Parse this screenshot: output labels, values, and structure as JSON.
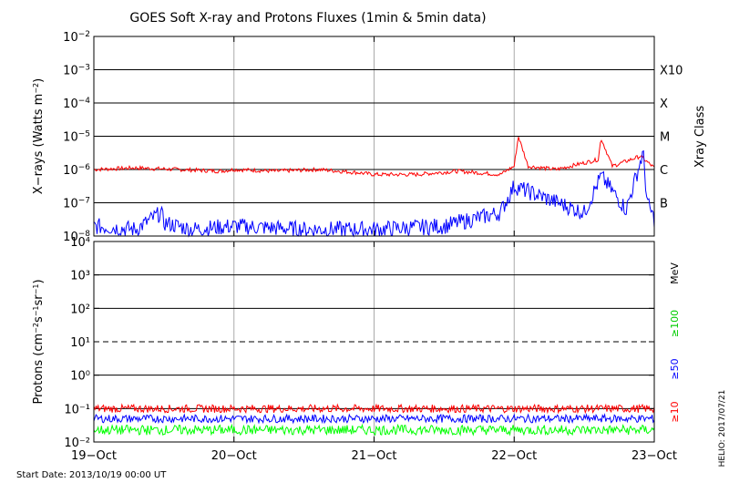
{
  "chart_data": [
    {
      "type": "line",
      "panel": "xray",
      "title": "GOES Soft X-ray and Protons Fluxes   (1min & 5min data)",
      "ylabel_html": "X−rays (Watts m<tspan baseline-shift='super' font-size='8'>−2</tspan>)",
      "ylabel_text": "X-rays (Watts m-2)",
      "y_scale": "log",
      "ylim_exp": [
        -8,
        -2
      ],
      "y_tick_exps": [
        -8,
        -7,
        -6,
        -5,
        -4,
        -3,
        -2
      ],
      "right_axis_label": "Xray Class",
      "right_ticks": [
        {
          "label": "X10",
          "exp": -3
        },
        {
          "label": "X",
          "exp": -4
        },
        {
          "label": "M",
          "exp": -5
        },
        {
          "label": "C",
          "exp": -6
        },
        {
          "label": "B",
          "exp": -7
        }
      ],
      "grid": true,
      "series": [
        {
          "color": "#ff0000",
          "baseline_exp": -6.0,
          "x_days": [
            0,
            0.3,
            0.6,
            0.9,
            1.0,
            1.3,
            1.6,
            1.9,
            2.0,
            2.3,
            2.6,
            2.9,
            3.0,
            3.03,
            3.1,
            3.3,
            3.6,
            3.62,
            3.7,
            3.9,
            4.0
          ],
          "y_exp": [
            -6.0,
            -5.95,
            -6.0,
            -6.05,
            -6.0,
            -6.05,
            -6.0,
            -6.1,
            -6.15,
            -6.15,
            -6.05,
            -6.15,
            -5.9,
            -5.0,
            -5.9,
            -6.0,
            -5.7,
            -5.05,
            -5.9,
            -5.6,
            -5.95
          ]
        },
        {
          "color": "#0000ff",
          "baseline_exp": -7.9,
          "x_days": [
            0,
            0.3,
            0.48,
            0.5,
            0.7,
            1.0,
            1.5,
            2.0,
            2.5,
            2.9,
            3.0,
            3.5,
            3.62,
            3.8,
            3.92,
            3.95,
            4.0
          ],
          "y_exp": [
            -7.7,
            -7.8,
            -7.3,
            -7.6,
            -7.8,
            -7.7,
            -7.8,
            -7.8,
            -7.7,
            -7.3,
            -6.5,
            -7.3,
            -6.2,
            -7.2,
            -5.5,
            -7.0,
            -7.5
          ]
        }
      ]
    },
    {
      "type": "line",
      "panel": "protons",
      "ylabel_html": "Protons (cm<tspan baseline-shift='super' font-size='8'>−2</tspan>s<tspan baseline-shift='super' font-size='8'>−1</tspan>sr<tspan baseline-shift='super' font-size='8'>−1</tspan>)",
      "ylabel_text": "Protons (cm-2s-1sr-1)",
      "y_scale": "log",
      "ylim_exp": [
        -2,
        4
      ],
      "y_tick_labels": [
        "10⁻²",
        "10⁻¹",
        "10⁰",
        "10¹",
        "10²",
        "10³",
        "10⁴"
      ],
      "threshold_exp": 1,
      "x_ticks": [
        "19−Oct",
        "20−Oct",
        "21−Oct",
        "22−Oct",
        "23−Oct"
      ],
      "right_labels": [
        {
          "text": "MeV",
          "color": "#000000"
        },
        {
          "text": "≥100",
          "color": "#00cc00"
        },
        {
          "text": "≥50",
          "color": "#0000ff"
        },
        {
          "text": "≥10",
          "color": "#ff0000"
        }
      ],
      "series": [
        {
          "name": "≥10",
          "color": "#ff0000",
          "baseline_exp": -1.05,
          "noise": 0.12
        },
        {
          "name": "≥50",
          "color": "#0000ff",
          "baseline_exp": -1.35,
          "noise": 0.12
        },
        {
          "name": "≥100",
          "color": "#00ff00",
          "baseline_exp": -1.7,
          "noise": 0.15
        }
      ]
    }
  ],
  "footer": {
    "start_date": "Start Date: 2013/10/19 00:00 UT",
    "credit": "HELIO: 2017/07/21"
  }
}
